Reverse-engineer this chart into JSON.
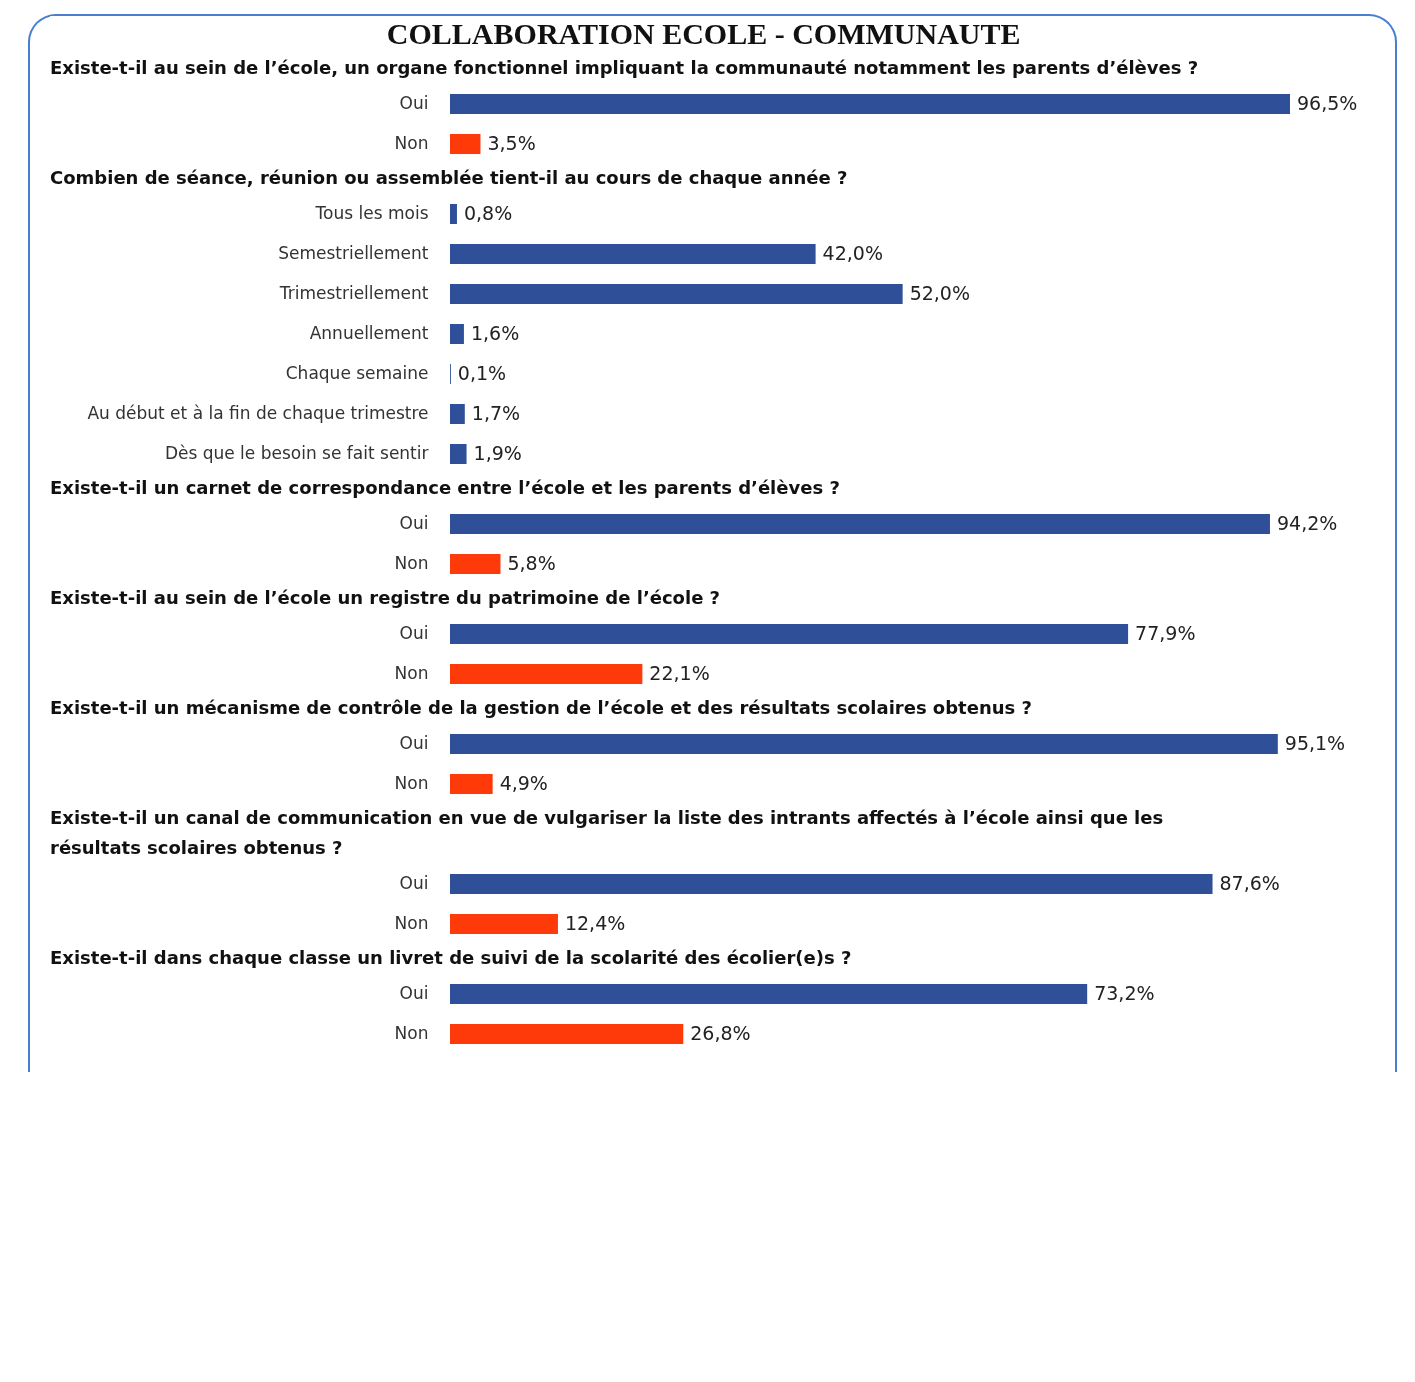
{
  "chart_data": [
    {
      "type": "bar",
      "orientation": "horizontal",
      "title": "COLLABORATION  ECOLE - COMMUNAUTE",
      "subtitle": "Existe-t-il au sein de l’école, un organe fonctionnel impliquant la communauté notamment les parents d’élèves ?",
      "categories": [
        "Oui",
        "Non"
      ],
      "values": [
        96.5,
        3.5
      ],
      "colors": [
        "#2f4f98",
        "#ff3a0a"
      ],
      "value_labels": [
        "96,5%",
        "3,5%"
      ]
    },
    {
      "type": "bar",
      "orientation": "horizontal",
      "title": "Combien de séance, réunion ou assemblée tient-il au cours de chaque année ?",
      "categories": [
        "Tous les mois",
        "Semestriellement",
        "Trimestriellement",
        "Annuellement",
        "Chaque semaine",
        "Au début et à la fin de chaque trimestre",
        "Dès que le besoin se fait sentir"
      ],
      "values": [
        0.8,
        42.0,
        52.0,
        1.6,
        0.1,
        1.7,
        1.9
      ],
      "colors": [
        "#2f4f98",
        "#2f4f98",
        "#2f4f98",
        "#2f4f98",
        "#2f4f98",
        "#2f4f98",
        "#2f4f98"
      ],
      "value_labels": [
        "0,8%",
        "42,0%",
        "52,0%",
        "1,6%",
        "0,1%",
        "1,7%",
        "1,9%"
      ]
    },
    {
      "type": "bar",
      "orientation": "horizontal",
      "title": "Existe-t-il un carnet de correspondance entre l’école et les parents d’élèves ?",
      "categories": [
        "Oui",
        "Non"
      ],
      "values": [
        94.2,
        5.8
      ],
      "colors": [
        "#2f4f98",
        "#ff3a0a"
      ],
      "value_labels": [
        "94,2%",
        "5,8%"
      ]
    },
    {
      "type": "bar",
      "orientation": "horizontal",
      "title": "Existe-t-il au sein de l’école un registre du patrimoine de l’école ?",
      "categories": [
        "Oui",
        "Non"
      ],
      "values": [
        77.9,
        22.1
      ],
      "colors": [
        "#2f4f98",
        "#ff3a0a"
      ],
      "value_labels": [
        "77,9%",
        "22,1%"
      ]
    },
    {
      "type": "bar",
      "orientation": "horizontal",
      "title": "Existe-t-il un mécanisme de contrôle de la gestion de l’école et des résultats scolaires obtenus ?",
      "categories": [
        "Oui",
        "Non"
      ],
      "values": [
        95.1,
        4.9
      ],
      "colors": [
        "#2f4f98",
        "#ff3a0a"
      ],
      "value_labels": [
        "95,1%",
        "4,9%"
      ]
    },
    {
      "type": "bar",
      "orientation": "horizontal",
      "title": "Existe-t-il un canal de communication en vue de vulgariser la liste des intrants affectés à l’école ainsi que les résultats scolaires obtenus ?",
      "categories": [
        "Oui",
        "Non"
      ],
      "values": [
        87.6,
        12.4
      ],
      "colors": [
        "#2f4f98",
        "#ff3a0a"
      ],
      "value_labels": [
        "87,6%",
        "12,4%"
      ]
    },
    {
      "type": "bar",
      "orientation": "horizontal",
      "title": "Existe-t-il dans chaque classe un livret de suivi de la scolarité des écolier(e)s ?",
      "categories": [
        "Oui",
        "Non"
      ],
      "values": [
        73.2,
        26.8
      ],
      "colors": [
        "#2f4f98",
        "#ff3a0a"
      ],
      "value_labels": [
        "73,2%",
        "26,8%"
      ]
    }
  ]
}
